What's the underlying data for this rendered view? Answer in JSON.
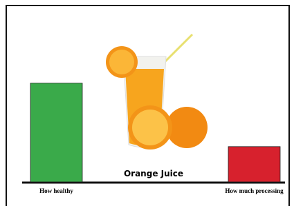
{
  "chart_data": {
    "type": "bar",
    "title": "Orange Juice",
    "categories": [
      "How healthy",
      "How much processing"
    ],
    "values": [
      56,
      20
    ],
    "colors": [
      "#3aaa4a",
      "#d7212d"
    ],
    "ylim": [
      0,
      100
    ]
  }
}
